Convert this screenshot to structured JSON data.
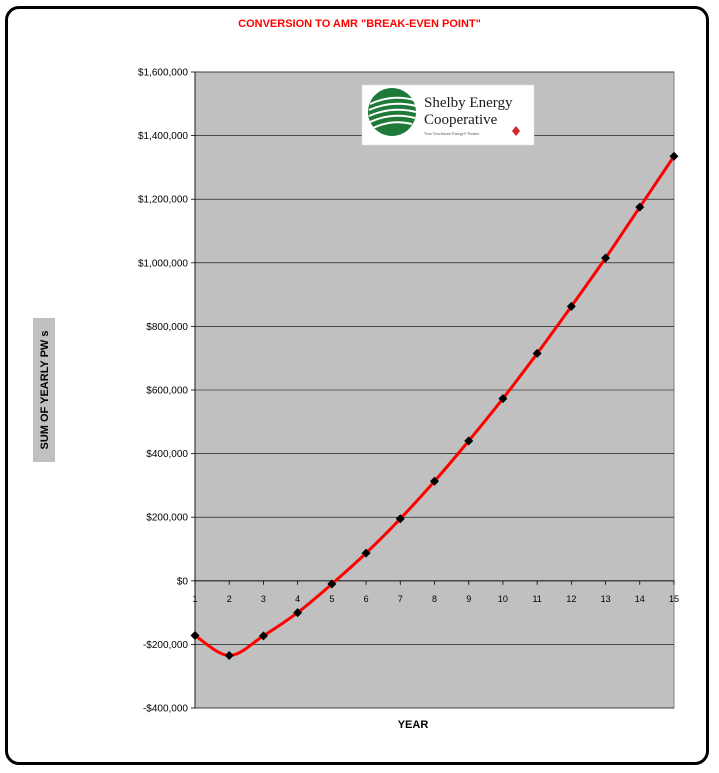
{
  "chart_data": {
    "type": "line",
    "title": "CONVERSION TO AMR \"BREAK-EVEN POINT\"",
    "xlabel": "YEAR",
    "ylabel": "SUM OF YEARLY PW s",
    "x": [
      1,
      2,
      3,
      4,
      5,
      6,
      7,
      8,
      9,
      10,
      11,
      12,
      13,
      14,
      15
    ],
    "series": [
      {
        "values": [
          -172000,
          -235000,
          -173000,
          -100000,
          -10000,
          87000,
          195000,
          313000,
          440000,
          573000,
          715000,
          863000,
          1015000,
          1175000,
          1335000
        ]
      }
    ],
    "ylim": [
      -400000,
      1600000
    ],
    "yticks": [
      -400000,
      -200000,
      0,
      200000,
      400000,
      600000,
      800000,
      1000000,
      1200000,
      1400000,
      1600000
    ],
    "ytick_labels": [
      "-$400,000",
      "-$200,000",
      "$0",
      "$200,000",
      "$400,000",
      "$600,000",
      "$800,000",
      "$1,000,000",
      "$1,200,000",
      "$1,400,000",
      "$1,600,000"
    ],
    "grid": true,
    "colors": {
      "line": "#ff0000",
      "marker": "#000000",
      "plot_bg": "#c0c0c0",
      "title": "#ff0000"
    }
  },
  "logo": {
    "name_line1": "Shelby Energy",
    "name_line2": "Cooperative",
    "tagline": "Your Touchstone Energy® Partner"
  }
}
